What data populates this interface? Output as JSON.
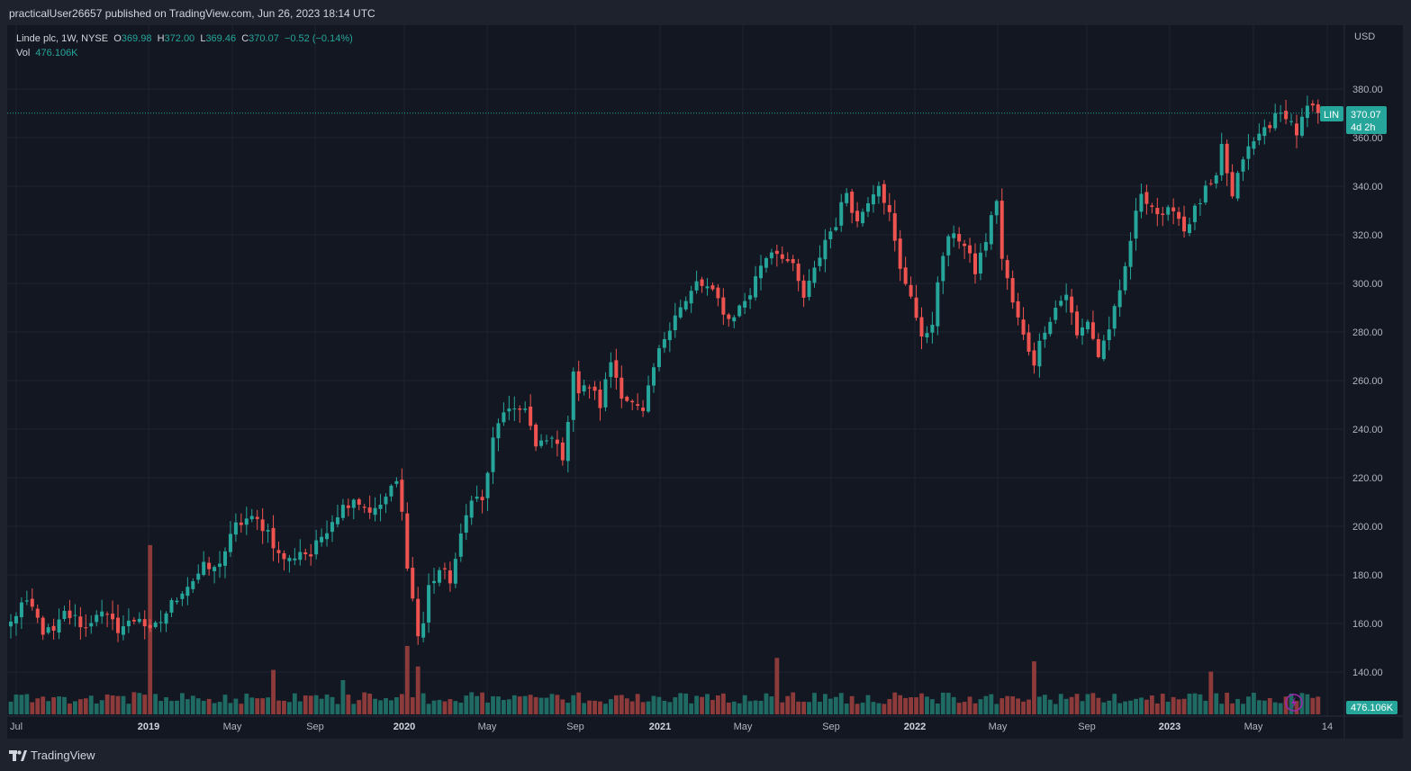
{
  "header": {
    "published": "practicalUser26657 published on TradingView.com, Jun 26, 2023 18:14 UTC"
  },
  "legend": {
    "symbol": "Linde plc, 1W, NYSE",
    "o_label": "O",
    "o": "369.98",
    "h_label": "H",
    "h": "372.00",
    "l_label": "L",
    "l": "369.46",
    "c_label": "C",
    "c": "370.07",
    "change": "−0.52 (−0.14%)",
    "vol_label": "Vol",
    "vol": "476.106K"
  },
  "price_axis": {
    "currency": "USD",
    "ticks": [
      "380.00",
      "360.00",
      "340.00",
      "320.00",
      "300.00",
      "280.00",
      "260.00",
      "240.00",
      "220.00",
      "200.00",
      "180.00",
      "160.00",
      "140.00"
    ]
  },
  "time_axis": {
    "ticks": [
      "Jul",
      "2019",
      "May",
      "Sep",
      "2020",
      "May",
      "Sep",
      "2021",
      "May",
      "Sep",
      "2022",
      "May",
      "Sep",
      "2023",
      "May",
      "14"
    ]
  },
  "last_price_tag": {
    "symbol": "LIN",
    "price": "370.07",
    "countdown": "4d 2h"
  },
  "volume_tag": "476.106K",
  "brand": "TradingView",
  "colors": {
    "up": "#26a69a",
    "down": "#ef5350",
    "up_vol": "#1f6b63",
    "down_vol": "#8c3a3a",
    "background": "#131722",
    "grid": "#1f2330"
  },
  "chart_data": {
    "type": "candlestick",
    "interval": "1W",
    "x_start": "Jul 2018",
    "x_end": "Jun 2023",
    "ylim": [
      140,
      380
    ],
    "close_path": [
      [
        0,
        160
      ],
      [
        2,
        168
      ],
      [
        4,
        166
      ],
      [
        6,
        157
      ],
      [
        8,
        156
      ],
      [
        10,
        164
      ],
      [
        12,
        162
      ],
      [
        14,
        158
      ],
      [
        16,
        165
      ],
      [
        18,
        162
      ],
      [
        20,
        158
      ],
      [
        22,
        160
      ],
      [
        24,
        163
      ],
      [
        26,
        156
      ],
      [
        28,
        161
      ],
      [
        30,
        168
      ],
      [
        32,
        174
      ],
      [
        34,
        178
      ],
      [
        36,
        183
      ],
      [
        38,
        182
      ],
      [
        40,
        190
      ],
      [
        42,
        200
      ],
      [
        44,
        203
      ],
      [
        46,
        202
      ],
      [
        48,
        198
      ],
      [
        50,
        188
      ],
      [
        52,
        186
      ],
      [
        54,
        190
      ],
      [
        56,
        188
      ],
      [
        58,
        196
      ],
      [
        60,
        203
      ],
      [
        62,
        208
      ],
      [
        64,
        212
      ],
      [
        66,
        208
      ],
      [
        68,
        206
      ],
      [
        70,
        212
      ],
      [
        72,
        218
      ],
      [
        73,
        205
      ],
      [
        74,
        185
      ],
      [
        75,
        170
      ],
      [
        76,
        155
      ],
      [
        77,
        160
      ],
      [
        78,
        175
      ],
      [
        80,
        182
      ],
      [
        82,
        178
      ],
      [
        84,
        195
      ],
      [
        86,
        213
      ],
      [
        88,
        210
      ],
      [
        90,
        235
      ],
      [
        92,
        248
      ],
      [
        94,
        246
      ],
      [
        96,
        250
      ],
      [
        98,
        232
      ],
      [
        100,
        235
      ],
      [
        102,
        236
      ],
      [
        103,
        225
      ],
      [
        105,
        265
      ],
      [
        106,
        255
      ],
      [
        108,
        258
      ],
      [
        110,
        250
      ],
      [
        112,
        268
      ],
      [
        114,
        255
      ],
      [
        116,
        250
      ],
      [
        118,
        246
      ],
      [
        120,
        265
      ],
      [
        122,
        278
      ],
      [
        124,
        288
      ],
      [
        126,
        292
      ],
      [
        128,
        300
      ],
      [
        130,
        298
      ],
      [
        132,
        293
      ],
      [
        134,
        285
      ],
      [
        136,
        290
      ],
      [
        138,
        296
      ],
      [
        140,
        308
      ],
      [
        142,
        314
      ],
      [
        144,
        312
      ],
      [
        146,
        306
      ],
      [
        148,
        294
      ],
      [
        150,
        305
      ],
      [
        152,
        318
      ],
      [
        154,
        325
      ],
      [
        156,
        338
      ],
      [
        158,
        325
      ],
      [
        160,
        335
      ],
      [
        162,
        342
      ],
      [
        164,
        328
      ],
      [
        166,
        305
      ],
      [
        168,
        296
      ],
      [
        170,
        276
      ],
      [
        172,
        285
      ],
      [
        174,
        312
      ],
      [
        176,
        322
      ],
      [
        178,
        315
      ],
      [
        180,
        305
      ],
      [
        182,
        318
      ],
      [
        184,
        335
      ],
      [
        185,
        310
      ],
      [
        187,
        292
      ],
      [
        189,
        278
      ],
      [
        191,
        268
      ],
      [
        193,
        282
      ],
      [
        195,
        290
      ],
      [
        197,
        296
      ],
      [
        199,
        278
      ],
      [
        201,
        285
      ],
      [
        203,
        270
      ],
      [
        205,
        282
      ],
      [
        207,
        295
      ],
      [
        209,
        318
      ],
      [
        211,
        338
      ],
      [
        213,
        332
      ],
      [
        215,
        326
      ],
      [
        217,
        332
      ],
      [
        219,
        322
      ],
      [
        221,
        330
      ],
      [
        223,
        338
      ],
      [
        225,
        342
      ],
      [
        226,
        356
      ],
      [
        228,
        335
      ],
      [
        230,
        352
      ],
      [
        232,
        358
      ],
      [
        234,
        364
      ],
      [
        236,
        368
      ],
      [
        238,
        370
      ],
      [
        240,
        362
      ],
      [
        242,
        372
      ],
      [
        244,
        370
      ]
    ],
    "volume_spikes": [
      [
        26,
        0.99
      ],
      [
        49,
        0.26
      ],
      [
        62,
        0.2
      ],
      [
        74,
        0.4
      ],
      [
        76,
        0.28
      ],
      [
        143,
        0.33
      ],
      [
        191,
        0.31
      ],
      [
        224,
        0.25
      ]
    ],
    "last": {
      "open": 369.98,
      "high": 372.0,
      "low": 369.46,
      "close": 370.07,
      "change": -0.52,
      "change_pct": -0.14,
      "volume": "476.106K"
    }
  }
}
